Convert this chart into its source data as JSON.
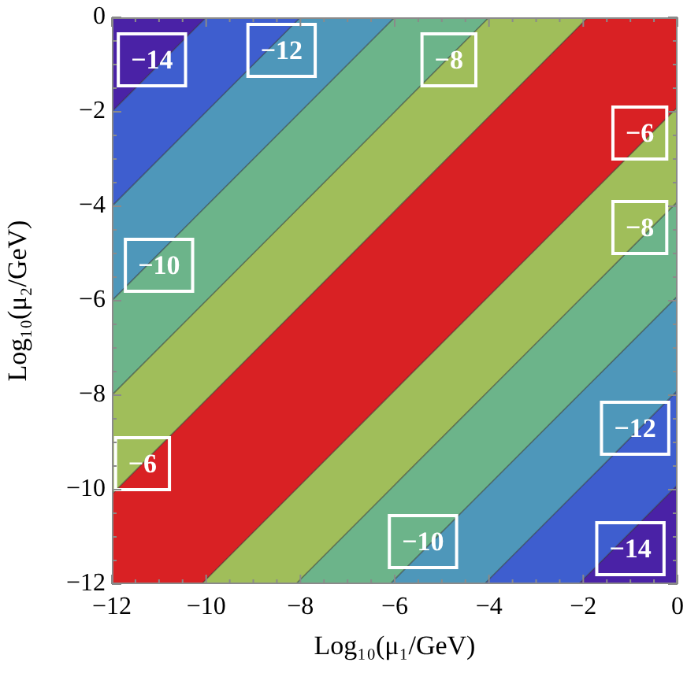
{
  "chart_data": {
    "type": "area",
    "stacked": true,
    "xlabel": "Log₁₀(μ₁/GeV)",
    "ylabel": "Log₁₀(μ₂/GeV)",
    "xlim": [
      -12,
      0
    ],
    "ylim": [
      -12,
      0
    ],
    "xticks": [
      {
        "value": -12,
        "label": "−12"
      },
      {
        "value": -11.5,
        "label": null
      },
      {
        "value": -11,
        "label": null
      },
      {
        "value": -10.5,
        "label": null
      },
      {
        "value": -10,
        "label": "−10"
      },
      {
        "value": -9.5,
        "label": null
      },
      {
        "value": -9,
        "label": null
      },
      {
        "value": -8.5,
        "label": null
      },
      {
        "value": -8,
        "label": "−8"
      },
      {
        "value": -7.5,
        "label": null
      },
      {
        "value": -7,
        "label": null
      },
      {
        "value": -6.5,
        "label": null
      },
      {
        "value": -6,
        "label": "−6"
      },
      {
        "value": -5.5,
        "label": null
      },
      {
        "value": -5,
        "label": null
      },
      {
        "value": -4.5,
        "label": null
      },
      {
        "value": -4,
        "label": "−4"
      },
      {
        "value": -3.5,
        "label": null
      },
      {
        "value": -3,
        "label": null
      },
      {
        "value": -2.5,
        "label": null
      },
      {
        "value": -2,
        "label": "−2"
      },
      {
        "value": -1.5,
        "label": null
      },
      {
        "value": -1,
        "label": null
      },
      {
        "value": -0.5,
        "label": null
      },
      0
    ],
    "yticks": [
      {
        "value": -12,
        "label": "−12"
      },
      {
        "value": -11.5,
        "label": null
      },
      {
        "value": -11,
        "label": null
      },
      {
        "value": -10.5,
        "label": null
      },
      {
        "value": -10,
        "label": "−10"
      },
      {
        "value": -9.5,
        "label": null
      },
      {
        "value": -9,
        "label": null
      },
      {
        "value": -8.5,
        "label": null
      },
      {
        "value": -8,
        "label": "−8"
      },
      {
        "value": -7.5,
        "label": null
      },
      {
        "value": -7,
        "label": null
      },
      {
        "value": -6.5,
        "label": null
      },
      {
        "value": -6,
        "label": "−6"
      },
      {
        "value": -5.5,
        "label": null
      },
      {
        "value": -5,
        "label": null
      },
      {
        "value": -4.5,
        "label": null
      },
      {
        "value": -4,
        "label": "−4"
      },
      {
        "value": -3.5,
        "label": null
      },
      {
        "value": -3,
        "label": null
      },
      {
        "value": -2.5,
        "label": null
      },
      {
        "value": -2,
        "label": "−2"
      },
      {
        "value": -1.5,
        "label": null
      },
      {
        "value": -1,
        "label": null
      },
      {
        "value": -0.5,
        "label": null
      },
      0
    ],
    "grid": false,
    "legend": false,
    "marker": "none",
    "x": [
      -12,
      -10.1,
      -10,
      -8.1,
      -8,
      -6.1,
      -6,
      -4.1,
      -4,
      -2.1,
      -1.9,
      0
    ],
    "series": [
      {
        "color": "#4a22a6",
        "values": [
          -2,
          -0.1,
          0,
          0,
          0,
          0,
          0,
          0,
          0,
          0,
          0,
          0
        ]
      },
      {
        "color": "#3e5ecf",
        "values": [
          -2,
          -2,
          -2,
          -0.1,
          0,
          0,
          0,
          0,
          0,
          0,
          0,
          0
        ]
      },
      {
        "color": "#4e97ba",
        "values": [
          -2,
          -2,
          -2,
          -2,
          -2,
          -0.1,
          0,
          0,
          0,
          0,
          0,
          0
        ]
      },
      {
        "color": "#6cb48a",
        "values": [
          -2,
          -2,
          -2,
          -2,
          -2,
          -2,
          -2,
          -0.1,
          0,
          0,
          0,
          0
        ]
      },
      {
        "color": "#a0be5a",
        "values": [
          -2.1,
          -2.1,
          -2.1,
          -2.1,
          -2.1,
          -2.1,
          -2.1,
          -2.1,
          -2.1,
          -0.2,
          0,
          0
        ]
      },
      {
        "color": "#d92124",
        "values": [
          -1.9,
          -3.8,
          -3.8,
          -3.8,
          -3.8,
          -3.8,
          -3.8,
          -3.8,
          -3.8,
          -3.8,
          -3.8,
          -1.9
        ]
      },
      {
        "color": "#a0be5a",
        "values": [
          0,
          0,
          -0.1,
          -2,
          -2,
          -2,
          -2,
          -2,
          -2,
          -2,
          -2,
          -2
        ]
      },
      {
        "color": "#6cb48a",
        "values": [
          0,
          0,
          0,
          0,
          -0.1,
          -2,
          -2,
          -2,
          -2,
          -2,
          -2,
          -2
        ]
      },
      {
        "color": "#4e97ba",
        "values": [
          0,
          0,
          0,
          0,
          0,
          0,
          -0.1,
          -2,
          -2,
          -2,
          -2,
          -2
        ]
      },
      {
        "color": "#3e5ecf",
        "values": [
          0,
          0,
          0,
          0,
          0,
          0,
          0,
          0,
          -0.1,
          -2,
          -2,
          -2
        ]
      },
      {
        "color": "#4a22a6",
        "values": [
          0,
          0,
          0,
          0,
          0,
          0,
          0,
          0,
          0,
          0,
          -0.2,
          -2.1
        ]
      }
    ],
    "annotations": [
      {
        "text": "−14",
        "x": -11.15,
        "y": -0.9
      },
      {
        "text": "−12",
        "x": -8.4,
        "y": -0.7
      },
      {
        "text": "−10",
        "x": -11.0,
        "y": -5.25
      },
      {
        "text": "−8",
        "x": -4.85,
        "y": -0.9
      },
      {
        "text": "−6",
        "x": -0.8,
        "y": -2.45
      },
      {
        "text": "−8",
        "x": -0.8,
        "y": -4.45
      },
      {
        "text": "−6",
        "x": -11.35,
        "y": -9.45
      },
      {
        "text": "−12",
        "x": -0.9,
        "y": -8.7
      },
      {
        "text": "−10",
        "x": -5.4,
        "y": -11.1
      },
      {
        "text": "−14",
        "x": -1.0,
        "y": -11.25
      }
    ]
  }
}
